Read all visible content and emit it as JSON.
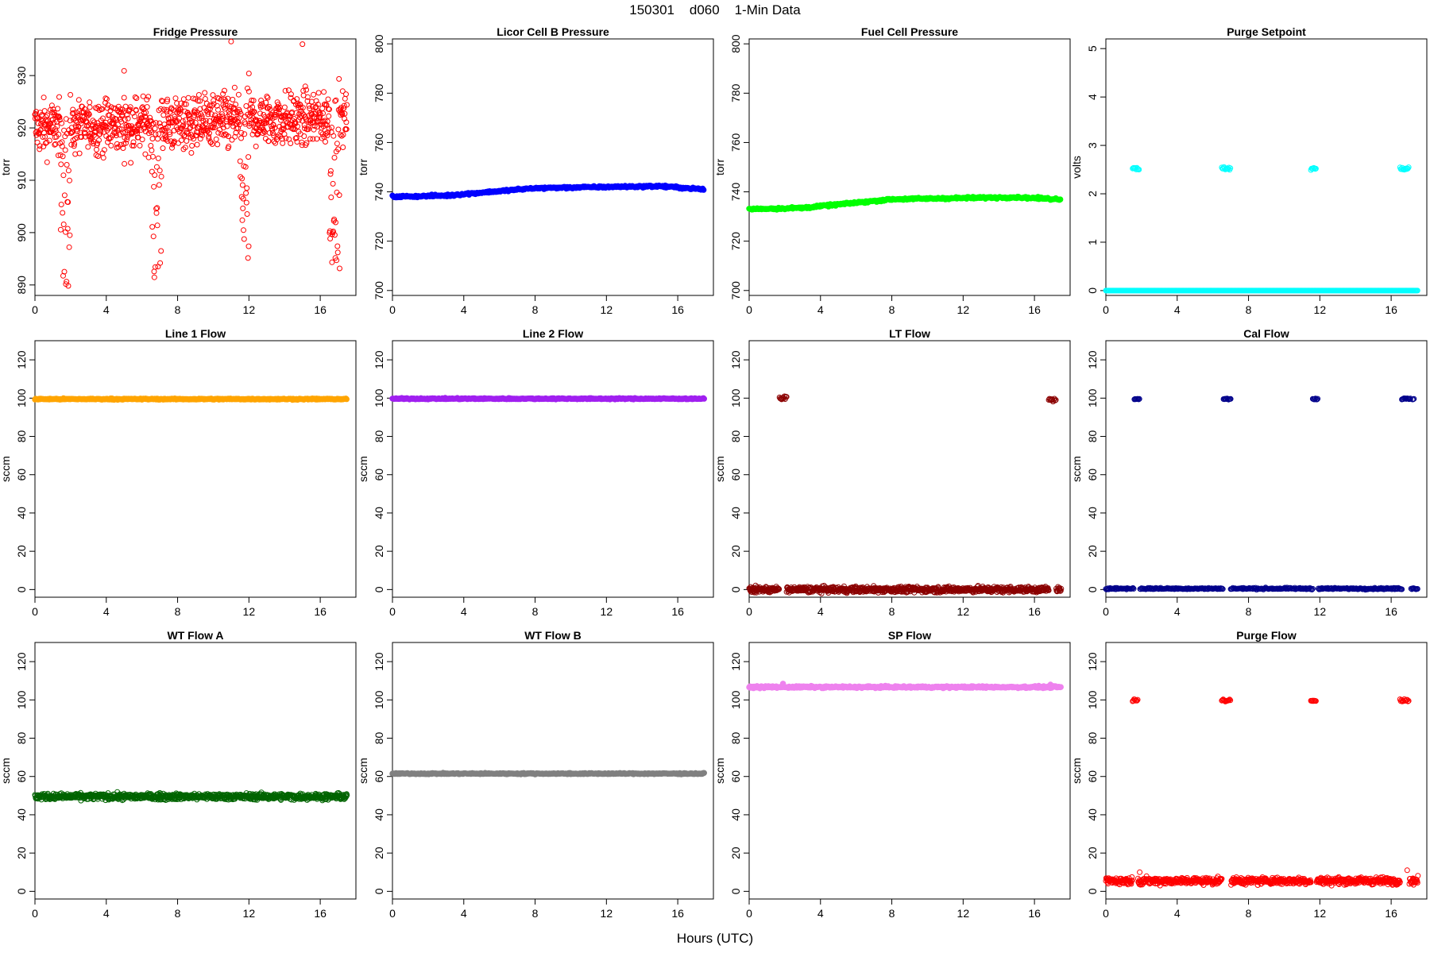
{
  "figure": {
    "title": "150301    d060    1-Min Data",
    "xlabel": "Hours (UTC)"
  },
  "chart_data": [
    {
      "type": "scatter",
      "title": "Fridge Pressure",
      "ylabel": "torr",
      "xlim": [
        0,
        18
      ],
      "ylim": [
        888,
        937
      ],
      "xticks": [
        0,
        4,
        8,
        12,
        16
      ],
      "yticks": [
        890,
        900,
        910,
        920,
        930
      ],
      "color": "#ff0000",
      "marker": "open-circle",
      "series": [
        {
          "pattern": "noisy",
          "baseline": 920,
          "trend_end": 922,
          "noise": 5,
          "outliers": [
            930.9,
            936.5
          ],
          "dips": [
            {
              "x": [
                1.4,
                2.0
              ],
              "min": 889
            },
            {
              "x": [
                6.5,
                7.1
              ],
              "min": 890
            },
            {
              "x": [
                11.5,
                12.0
              ],
              "min": 895
            },
            {
              "x": [
                16.5,
                17.1
              ],
              "min": 889.5
            }
          ]
        }
      ]
    },
    {
      "type": "scatter",
      "title": "Licor Cell B Pressure",
      "ylabel": "torr",
      "xlim": [
        0,
        18
      ],
      "ylim": [
        698,
        802
      ],
      "xticks": [
        0,
        4,
        8,
        12,
        16
      ],
      "yticks": [
        700,
        720,
        740,
        760,
        780,
        800
      ],
      "color": "#0000ff",
      "marker": "filled-circle",
      "series": [
        {
          "pattern": "line",
          "points": [
            [
              0,
              738
            ],
            [
              3,
              738.5
            ],
            [
              8,
              741.5
            ],
            [
              12,
              742
            ],
            [
              15,
              742.3
            ],
            [
              17.5,
              741
            ]
          ]
        }
      ]
    },
    {
      "type": "scatter",
      "title": "Fuel Cell Pressure",
      "ylabel": "torr",
      "xlim": [
        0,
        18
      ],
      "ylim": [
        698,
        802
      ],
      "xticks": [
        0,
        4,
        8,
        12,
        16
      ],
      "yticks": [
        700,
        720,
        740,
        760,
        780,
        800
      ],
      "color": "#00ff00",
      "marker": "filled-circle",
      "series": [
        {
          "pattern": "line",
          "points": [
            [
              0,
              733
            ],
            [
              3,
              733.5
            ],
            [
              8,
              737
            ],
            [
              12,
              737.5
            ],
            [
              15,
              737.8
            ],
            [
              17.5,
              737
            ]
          ]
        }
      ]
    },
    {
      "type": "scatter",
      "title": "Purge Setpoint",
      "ylabel": "volts",
      "xlim": [
        0,
        18
      ],
      "ylim": [
        -0.1,
        5.2
      ],
      "xticks": [
        0,
        4,
        8,
        12,
        16
      ],
      "yticks": [
        0,
        1,
        2,
        3,
        4,
        5
      ],
      "color": "#00ffff",
      "marker": "open-circle",
      "series": [
        {
          "pattern": "constant",
          "value": 0,
          "noise": 0
        },
        {
          "pattern": "clusters",
          "value": 2.52,
          "noise": 0.03,
          "clusters": [
            [
              1.5,
              1.9
            ],
            [
              6.5,
              7.0
            ],
            [
              11.5,
              11.8
            ],
            [
              16.5,
              17.0
            ]
          ]
        }
      ]
    },
    {
      "type": "scatter",
      "title": "Line 1 Flow",
      "ylabel": "sccm",
      "xlim": [
        0,
        18
      ],
      "ylim": [
        -4,
        130
      ],
      "xticks": [
        0,
        4,
        8,
        12,
        16
      ],
      "yticks": [
        0,
        20,
        40,
        60,
        80,
        100,
        120
      ],
      "color": "#ffa500",
      "marker": "filled-circle",
      "series": [
        {
          "pattern": "constant",
          "value": 99.5,
          "noise": 0.3
        }
      ]
    },
    {
      "type": "scatter",
      "title": "Line 2 Flow",
      "ylabel": "sccm",
      "xlim": [
        0,
        18
      ],
      "ylim": [
        -4,
        130
      ],
      "xticks": [
        0,
        4,
        8,
        12,
        16
      ],
      "yticks": [
        0,
        20,
        40,
        60,
        80,
        100,
        120
      ],
      "color": "#a020f0",
      "marker": "filled-circle",
      "series": [
        {
          "pattern": "constant",
          "value": 99.7,
          "noise": 0.3
        }
      ]
    },
    {
      "type": "scatter",
      "title": "LT Flow",
      "ylabel": "sccm",
      "xlim": [
        0,
        18
      ],
      "ylim": [
        -4,
        130
      ],
      "xticks": [
        0,
        4,
        8,
        12,
        16
      ],
      "yticks": [
        0,
        20,
        40,
        60,
        80,
        100,
        120
      ],
      "color": "#8b0000",
      "marker": "open-circle",
      "series": [
        {
          "pattern": "constant",
          "value": 0,
          "noise": 1.5,
          "gaps": [
            [
              1.7,
              2.1
            ],
            [
              16.8,
              17.2
            ]
          ]
        },
        {
          "pattern": "clusters",
          "value": 99.5,
          "noise": 1.5,
          "clusters": [
            [
              1.7,
              2.1
            ],
            [
              16.8,
              17.2
            ]
          ]
        }
      ]
    },
    {
      "type": "scatter",
      "title": "Cal Flow",
      "ylabel": "sccm",
      "xlim": [
        0,
        18
      ],
      "ylim": [
        -4,
        130
      ],
      "xticks": [
        0,
        4,
        8,
        12,
        16
      ],
      "yticks": [
        0,
        20,
        40,
        60,
        80,
        100,
        120
      ],
      "color": "#00008b",
      "marker": "open-circle",
      "series": [
        {
          "pattern": "constant",
          "value": 0.5,
          "noise": 0.4,
          "gaps": [
            [
              1.6,
              1.9
            ],
            [
              6.6,
              7.0
            ],
            [
              11.6,
              11.9
            ],
            [
              16.6,
              17.1
            ]
          ]
        },
        {
          "pattern": "clusters",
          "value": 99.6,
          "noise": 0.4,
          "clusters": [
            [
              1.6,
              1.9
            ],
            [
              6.6,
              7.0
            ],
            [
              11.6,
              11.9
            ],
            [
              16.6,
              17.1
            ]
          ]
        },
        {
          "pattern": "clusters",
          "value": 99.4,
          "noise": 0.4,
          "clusters": [
            [
              17.2,
              17.3
            ]
          ]
        }
      ]
    },
    {
      "type": "scatter",
      "title": "WT Flow A",
      "ylabel": "sccm",
      "xlim": [
        0,
        18
      ],
      "ylim": [
        -4,
        130
      ],
      "xticks": [
        0,
        4,
        8,
        12,
        16
      ],
      "yticks": [
        0,
        20,
        40,
        60,
        80,
        100,
        120
      ],
      "color": "#006400",
      "marker": "open-circle",
      "series": [
        {
          "pattern": "constant",
          "value": 49.5,
          "noise": 1.6
        }
      ]
    },
    {
      "type": "scatter",
      "title": "WT Flow B",
      "ylabel": "sccm",
      "xlim": [
        0,
        18
      ],
      "ylim": [
        -4,
        130
      ],
      "xticks": [
        0,
        4,
        8,
        12,
        16
      ],
      "yticks": [
        0,
        20,
        40,
        60,
        80,
        100,
        120
      ],
      "color": "#808080",
      "marker": "filled-circle",
      "series": [
        {
          "pattern": "constant",
          "value": 61.5,
          "noise": 0.3
        }
      ]
    },
    {
      "type": "scatter",
      "title": "SP Flow",
      "ylabel": "sccm",
      "xlim": [
        0,
        18
      ],
      "ylim": [
        -4,
        130
      ],
      "xticks": [
        0,
        4,
        8,
        12,
        16
      ],
      "yticks": [
        0,
        20,
        40,
        60,
        80,
        100,
        120
      ],
      "color": "#ee82ee",
      "marker": "filled-circle",
      "series": [
        {
          "pattern": "constant",
          "value": 106.7,
          "noise": 0.5,
          "outliers": [
            108.5,
            108.0
          ]
        }
      ]
    },
    {
      "type": "scatter",
      "title": "Purge Flow",
      "ylabel": "sccm",
      "xlim": [
        0,
        18
      ],
      "ylim": [
        -4,
        130
      ],
      "xticks": [
        0,
        4,
        8,
        12,
        16
      ],
      "yticks": [
        0,
        20,
        40,
        60,
        80,
        100,
        120
      ],
      "color": "#ff0000",
      "marker": "open-circle",
      "series": [
        {
          "pattern": "constant",
          "value": 5.5,
          "noise": 1.8,
          "gaps": [
            [
              1.5,
              1.8
            ],
            [
              6.5,
              7.0
            ],
            [
              11.5,
              11.8
            ],
            [
              16.5,
              17.0
            ]
          ],
          "outliers": [
            10,
            11
          ]
        },
        {
          "pattern": "clusters",
          "value": 99.8,
          "noise": 0.6,
          "clusters": [
            [
              1.5,
              1.8
            ],
            [
              6.5,
              7.0
            ],
            [
              11.5,
              11.8
            ],
            [
              16.5,
              17.0
            ]
          ]
        }
      ]
    }
  ]
}
